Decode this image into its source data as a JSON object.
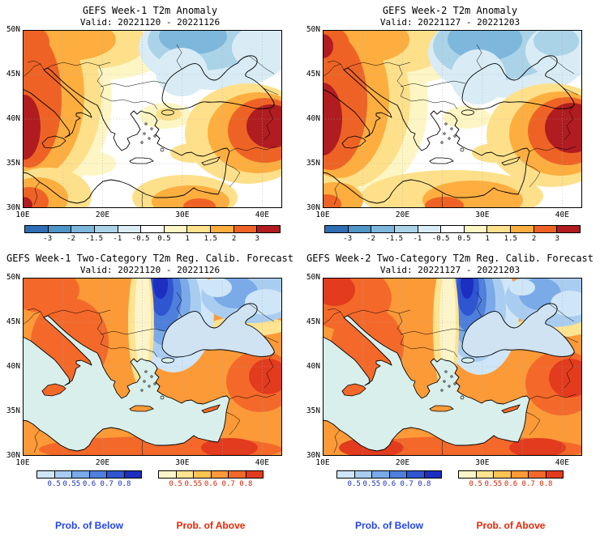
{
  "map_style": {
    "sea_fill": "#d8efec",
    "black_sea_fill": "#cfe3f2",
    "coast": "#000000",
    "grid": "#aaaaaa"
  },
  "panels": [
    {
      "id": "week1-anomaly",
      "type": "anomaly",
      "week": 1,
      "title": "GEFS Week-1 T2m Anomaly",
      "valid": "Valid: 20221120 - 20221126",
      "lat_labels": [
        "50N",
        "45N",
        "40N",
        "35N",
        "30N"
      ],
      "lon_labels": [
        "10E",
        "20E",
        "30E",
        "40E"
      ],
      "colorbars": [
        {
          "ticks": [
            "-3",
            "-2",
            "-1.5",
            "-1",
            "-0.5",
            "0.5",
            "1",
            "1.5",
            "2",
            "3"
          ],
          "colors": [
            "#2f6eb5",
            "#4e95c8",
            "#7db7dc",
            "#abd3e8",
            "#d9ecf5",
            "#ffffff",
            "#fdf6c4",
            "#fee08b",
            "#fdae3f",
            "#ee6325",
            "#b01c20"
          ],
          "tick_color": "#000000"
        }
      ]
    },
    {
      "id": "week2-anomaly",
      "type": "anomaly",
      "week": 2,
      "title": "GEFS Week-2 T2m Anomaly",
      "valid": "Valid: 20221127 - 20221203",
      "lat_labels": [
        "50N",
        "45N",
        "40N",
        "35N",
        "30N"
      ],
      "lon_labels": [
        "10E",
        "20E",
        "30E",
        "40E"
      ],
      "colorbars": [
        {
          "ticks": [
            "-3",
            "-2",
            "-1.5",
            "-1",
            "-0.5",
            "0.5",
            "1",
            "1.5",
            "2",
            "3"
          ],
          "colors": [
            "#2f6eb5",
            "#4e95c8",
            "#7db7dc",
            "#abd3e8",
            "#d9ecf5",
            "#ffffff",
            "#fdf6c4",
            "#fee08b",
            "#fdae3f",
            "#ee6325",
            "#b01c20"
          ],
          "tick_color": "#000000"
        }
      ]
    },
    {
      "id": "week1-prob",
      "type": "prob",
      "week": 1,
      "title": "GEFS Week-1 Two-Category T2m Reg. Calib. Forecast",
      "valid": "Valid: 20221120 - 20221126",
      "lat_labels": [
        "50N",
        "45N",
        "40N",
        "35N",
        "30N"
      ],
      "lon_labels": [
        "10E",
        "20E",
        "30E",
        "40E"
      ],
      "colorbars": [
        {
          "ticks": [
            "0.5",
            "0.55",
            "0.6",
            "0.7",
            "0.8"
          ],
          "colors": [
            "#cfe6f8",
            "#a9cdf1",
            "#7aaae8",
            "#4f7fdc",
            "#2f55d0",
            "#1c2fc0"
          ],
          "tick_color": "#1c2fc0",
          "label": "Prob. of Below",
          "label_color": "#2244ee"
        },
        {
          "ticks": [
            "0.5",
            "0.55",
            "0.6",
            "0.7",
            "0.8"
          ],
          "colors": [
            "#fdf5c9",
            "#fee391",
            "#fec44f",
            "#fd9a38",
            "#f4692a",
            "#e33b1e"
          ],
          "tick_color": "#d42400",
          "label": "Prob. of Above",
          "label_color": "#ee2400"
        }
      ]
    },
    {
      "id": "week2-prob",
      "type": "prob",
      "week": 2,
      "title": "GEFS Week-2 Two-Category T2m Reg. Calib. Forecast",
      "valid": "Valid: 20221127 - 20221203",
      "lat_labels": [
        "50N",
        "45N",
        "40N",
        "35N",
        "30N"
      ],
      "lon_labels": [
        "10E",
        "20E",
        "30E",
        "40E"
      ],
      "colorbars": [
        {
          "ticks": [
            "0.5",
            "0.55",
            "0.6",
            "0.7",
            "0.8"
          ],
          "colors": [
            "#cfe6f8",
            "#a9cdf1",
            "#7aaae8",
            "#4f7fdc",
            "#2f55d0",
            "#1c2fc0"
          ],
          "tick_color": "#1c2fc0",
          "label": "Prob. of Below",
          "label_color": "#2244ee"
        },
        {
          "ticks": [
            "0.5",
            "0.55",
            "0.6",
            "0.7",
            "0.8"
          ],
          "colors": [
            "#fdf5c9",
            "#fee391",
            "#fec44f",
            "#fd9a38",
            "#f4692a",
            "#e33b1e"
          ],
          "tick_color": "#d42400",
          "label": "Prob. of Above",
          "label_color": "#ee2400"
        }
      ]
    }
  ]
}
